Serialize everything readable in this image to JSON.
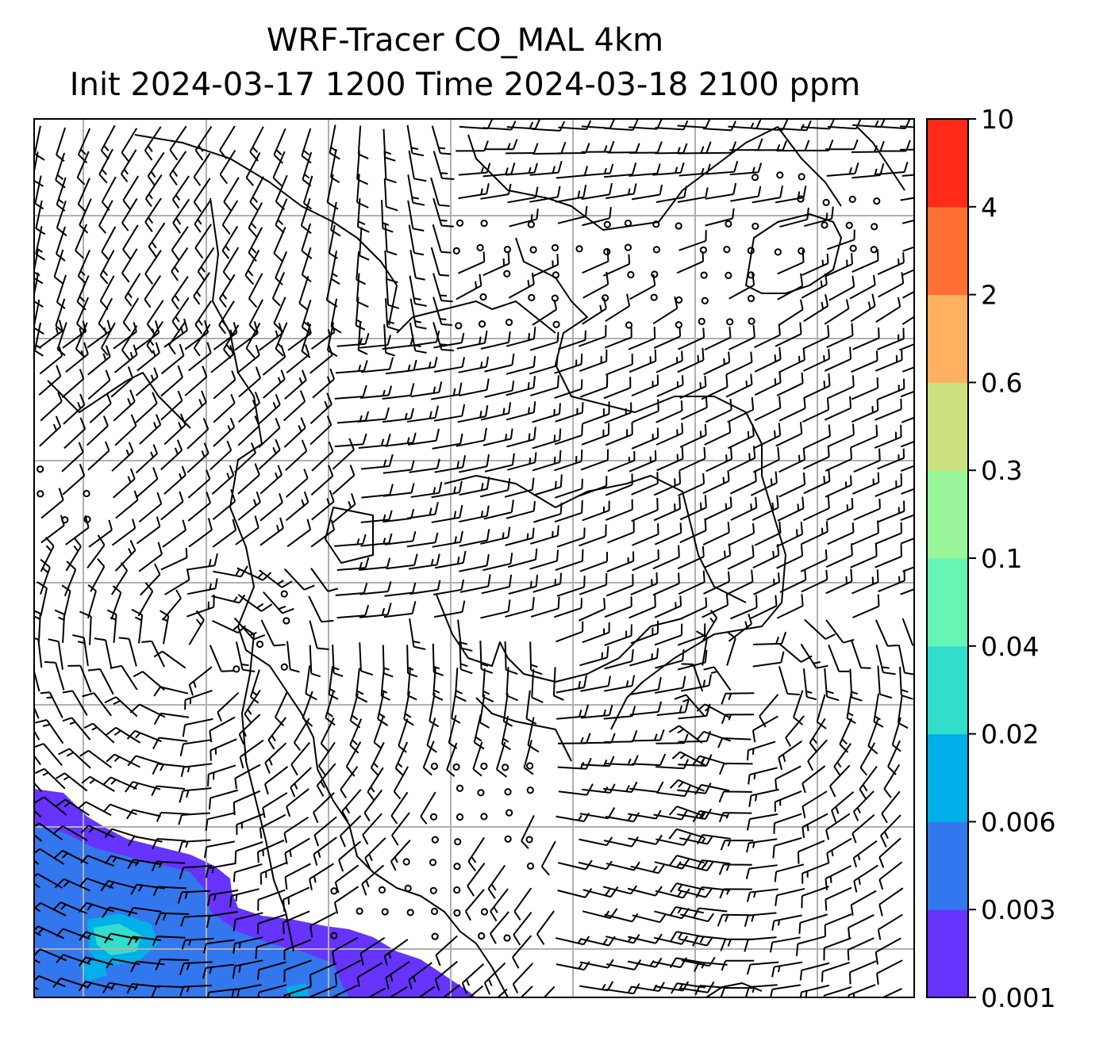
{
  "chart_data": {
    "type": "heatmap",
    "title_line1": "WRF-Tracer CO_MAL 4km",
    "title_line2": "Init 2024-03-17 1200 Time 2024-03-18 2100 ppm",
    "colorbar": {
      "levels": [
        "0.001",
        "0.003",
        "0.006",
        "0.02",
        "0.04",
        "0.1",
        "0.3",
        "0.6",
        "2",
        "4",
        "10"
      ],
      "colors": [
        "#6633ff",
        "#3377ee",
        "#00b0e8",
        "#33ddcc",
        "#66f5b5",
        "#99f59a",
        "#cce080",
        "#ffb060",
        "#ff7035",
        "#ff2a1a"
      ]
    },
    "grid": true,
    "overlays": [
      "wind barbs",
      "coastlines",
      "country borders"
    ]
  },
  "colors": {
    "grid": "#b0b0b0",
    "frame": "#000000"
  }
}
